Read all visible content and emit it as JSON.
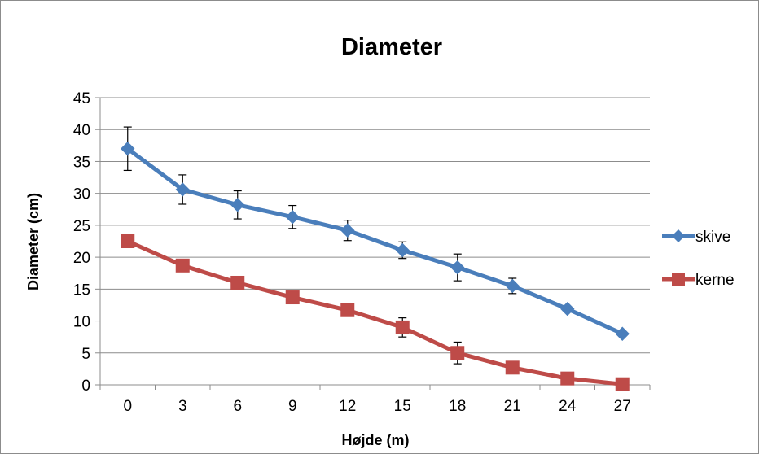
{
  "chart_data": {
    "type": "line",
    "title": "Diameter",
    "xlabel": "Højde (m)",
    "ylabel": "Diameter (cm)",
    "x": [
      0,
      3,
      6,
      9,
      12,
      15,
      18,
      21,
      24,
      27
    ],
    "x_tick_labels": [
      "0",
      "3",
      "6",
      "9",
      "12",
      "15",
      "18",
      "21",
      "24",
      "27"
    ],
    "y_tick_labels": [
      "0",
      "5",
      "10",
      "15",
      "20",
      "25",
      "30",
      "35",
      "40",
      "45"
    ],
    "ylim": [
      0,
      45
    ],
    "grid": true,
    "legend_position": "right",
    "series": [
      {
        "name": "skive",
        "color": "#4a7ebb",
        "marker": "diamond",
        "values": [
          37,
          30.6,
          28.2,
          26.3,
          24.2,
          21.1,
          18.4,
          15.5,
          11.9,
          8
        ],
        "error": [
          3.4,
          2.3,
          2.2,
          1.8,
          1.6,
          1.3,
          2.1,
          1.2,
          null,
          null
        ]
      },
      {
        "name": "kerne",
        "color": "#be4b48",
        "marker": "square",
        "values": [
          22.5,
          18.7,
          16,
          13.7,
          11.7,
          9,
          5,
          2.7,
          1,
          0.1
        ],
        "error": [
          null,
          null,
          null,
          null,
          null,
          1.5,
          1.7,
          null,
          null,
          null
        ]
      }
    ]
  }
}
